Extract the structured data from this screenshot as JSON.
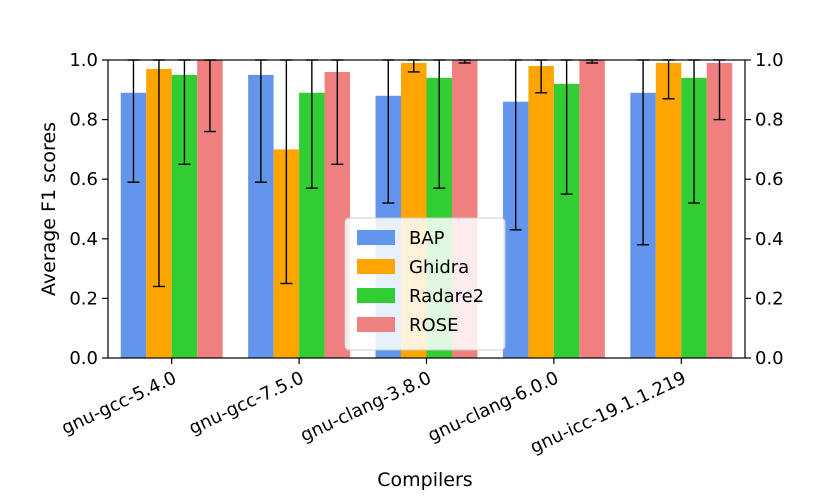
{
  "chart_data": {
    "type": "bar",
    "title": "",
    "xlabel": "Compilers",
    "ylabel": "Average F1 scores",
    "ylim": [
      0.0,
      1.0
    ],
    "yticks": [
      "0.0",
      "0.2",
      "0.4",
      "0.6",
      "0.8",
      "1.0"
    ],
    "right_axis": true,
    "grid": false,
    "legend_position": "lower-center",
    "categories": [
      "gnu-gcc-5.4.0",
      "gnu-gcc-7.5.0",
      "gnu-clang-3.8.0",
      "gnu-clang-6.0.0",
      "gnu-icc-19.1.1.219"
    ],
    "series": [
      {
        "name": "BAP",
        "color": "#6495ED",
        "values": [
          0.89,
          0.95,
          0.88,
          0.86,
          0.89
        ],
        "err_low": [
          0.59,
          0.59,
          0.52,
          0.43,
          0.38
        ],
        "err_high": [
          1.0,
          1.0,
          1.0,
          1.0,
          1.0
        ]
      },
      {
        "name": "Ghidra",
        "color": "#FFA500",
        "values": [
          0.97,
          0.7,
          0.99,
          0.98,
          0.99
        ],
        "err_low": [
          0.24,
          0.25,
          0.96,
          0.89,
          0.87
        ],
        "err_high": [
          1.0,
          1.0,
          1.0,
          1.0,
          1.0
        ]
      },
      {
        "name": "Radare2",
        "color": "#32CD32",
        "values": [
          0.95,
          0.89,
          0.94,
          0.92,
          0.94
        ],
        "err_low": [
          0.65,
          0.57,
          0.57,
          0.55,
          0.52
        ],
        "err_high": [
          1.0,
          1.0,
          1.0,
          1.0,
          1.0
        ]
      },
      {
        "name": "ROSE",
        "color": "#F08080",
        "values": [
          1.0,
          0.96,
          1.0,
          1.0,
          0.99
        ],
        "err_low": [
          0.76,
          0.65,
          0.99,
          0.99,
          0.8
        ],
        "err_high": [
          1.0,
          1.0,
          1.0,
          1.0,
          1.0
        ]
      }
    ]
  }
}
